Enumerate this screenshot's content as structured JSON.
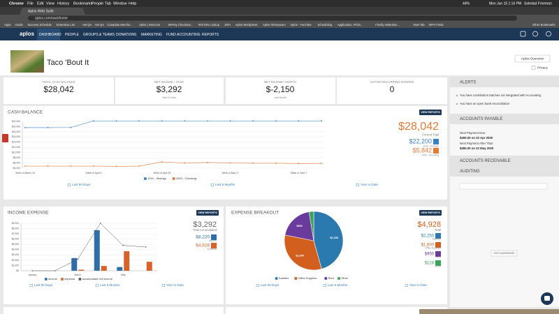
{
  "menu_bar": {
    "items": [
      "Chrome",
      "File",
      "Edit",
      "View",
      "History",
      "Bookmarks",
      "People",
      "Tab",
      "Window",
      "Help"
    ],
    "battery": "44%",
    "clock": "Mon Jun 15  1:16 PM",
    "user": "Soledad Freeman"
  },
  "browser": {
    "tab": "Aplos Web Suite",
    "url": "aplos.com/aws/home",
    "bookmarks": [
      "Apps",
      "Guide",
      "Success Schedule",
      "Extension List",
      "AM QA",
      "AM QA",
      "Canadian Merchs...",
      "Aplos | Intercom",
      "WePay Checkout...",
      "IRS EIN Lookup",
      "JIRA",
      "Aplos Wordpress",
      "Aplos Athenaeum",
      "Aplos - YouTube",
      "Scheduling",
      "Application, Pricin...",
      "Floctly Institution...",
      "New Tab",
      "WFH Finds"
    ],
    "other_bookmarks": "Other Bookmarks"
  },
  "nav": {
    "logo": "aplos",
    "items": [
      "DASHBOARD",
      "PEOPLE",
      "GROUPS & TEAMS",
      "DONATIONS",
      "MARKETING",
      "FUND ACCOUNTING",
      "REPORTS"
    ]
  },
  "org": {
    "name": "Taco 'Bout It",
    "overview_button": "Aplos Overview",
    "privacy": "Privacy"
  },
  "kpis": [
    {
      "label": "TOTAL CASH BALANCE",
      "value": "$28,042"
    },
    {
      "label": "NET INCOME / YEAR",
      "value": "$3,292",
      "note": "Year to Date"
    },
    {
      "label": "NET INCOME / MONTH",
      "value": "$-2,150",
      "note": "Last Month"
    },
    {
      "label": "ACTIVE RECURRING DONORS",
      "value": "0"
    }
  ],
  "cash_balance": {
    "type": "line",
    "title": "CASH BALANCE",
    "button": "VIEW REPORTS",
    "categories": [
      "Week of March 15",
      null,
      null,
      "Week of April 5",
      null,
      null,
      "Week of April 26",
      null,
      null,
      "Week of May 17",
      null,
      null,
      "Week of June 7",
      null
    ],
    "series": [
      {
        "name": "1010 - Savings",
        "color": "#3a7ebf",
        "values": [
          19600,
          19600,
          19650,
          22200,
          22200,
          22200,
          22200,
          22200,
          22200,
          22200,
          22200,
          22200,
          22200,
          22200
        ]
      },
      {
        "name": "1000 - Checking",
        "color": "#e07b39",
        "values": [
          4800,
          4800,
          4800,
          4800,
          4700,
          4800,
          6400,
          6000,
          6200,
          6000,
          5900,
          5900,
          5800,
          5842
        ]
      }
    ],
    "ylim": [
      4000,
      22000
    ],
    "yticks": [
      {
        "value": 4000,
        "label": "$4,000"
      },
      {
        "value": 6000,
        "label": "$6,000"
      },
      {
        "value": 8000,
        "label": "$8,000"
      },
      {
        "value": 10000,
        "label": "$10,000"
      },
      {
        "value": 12000,
        "label": "$12,000"
      },
      {
        "value": 14000,
        "label": "$14,000"
      },
      {
        "value": 16000,
        "label": "$16,000"
      },
      {
        "value": 18000,
        "label": "$18,000"
      },
      {
        "value": 20000,
        "label": "$20,000"
      },
      {
        "value": 22000,
        "label": "$22,000"
      }
    ],
    "grid": true,
    "total": {
      "value": "$28,042",
      "label": "Current Total"
    },
    "summary": [
      {
        "value": "$22,200",
        "label": "1010 - Savings"
      },
      {
        "value": "$5,842",
        "label": "1000 - Checking"
      }
    ],
    "ranges": [
      "Last 90 Days",
      "Last 6 Months",
      "Year to Date"
    ]
  },
  "income_expense": {
    "type": "bar",
    "title": "INCOME EXPENSE",
    "button": "VIEW REPORTS",
    "categories": [
      "January",
      null,
      "March",
      null,
      "May",
      null
    ],
    "series": [
      {
        "name": "income",
        "color": "#2f6fa8",
        "values": [
          0,
          0,
          2400,
          7700,
          700,
          0
        ]
      },
      {
        "name": "expense",
        "color": "#d9622b",
        "values": [
          0,
          0,
          200,
          900,
          3700,
          1700
        ]
      },
      {
        "name": "accumulated net income",
        "color": "#555555",
        "type": "line",
        "values": [
          0,
          0,
          2200,
          9000,
          4800,
          4500
        ]
      }
    ],
    "ylim": [
      0,
      9000
    ],
    "yticks": [
      {
        "value": 0,
        "label": "$0"
      },
      {
        "value": 1000,
        "label": "$1,000"
      },
      {
        "value": 2000,
        "label": "$2,000"
      },
      {
        "value": 3000,
        "label": "$3,000"
      },
      {
        "value": 4000,
        "label": "$4,000"
      },
      {
        "value": 5000,
        "label": "$5,000"
      },
      {
        "value": 6000,
        "label": "$6,000"
      },
      {
        "value": 7000,
        "label": "$7,000"
      },
      {
        "value": 8000,
        "label": "$8,000"
      },
      {
        "value": 9000,
        "label": "$9,000"
      }
    ],
    "grid": true,
    "total": {
      "value": "$3,292",
      "label": "Total Accumulated"
    },
    "summary": [
      {
        "value": "$8,220",
        "label": "Income"
      },
      {
        "value": "$4,928",
        "label": "Expense"
      }
    ],
    "ranges": [
      "Last 90 Days",
      "Last 6 Months",
      "Year to Date"
    ]
  },
  "expense_breakout": {
    "type": "pie",
    "title": "EXPENSE BREAKOUT",
    "button": "VIEW REPORTS",
    "categories": [
      "Salaries",
      "Office Supplies",
      "Rent",
      "Other"
    ],
    "values": [
      2250,
      1600,
      950,
      128
    ],
    "value_labels": [
      "$2,250",
      "$1,600",
      "$950",
      null
    ],
    "colors": [
      "#2a7ab0",
      "#d35f1f",
      "#6a3a9c",
      "#3aa35a"
    ],
    "total": {
      "value": "$4,928",
      "label": "Total"
    },
    "summary": [
      {
        "value": "$2,250",
        "label": "Salaries"
      },
      {
        "value": "$1,600",
        "label": "Office Supplies"
      },
      {
        "value": "$950",
        "label": "Rent"
      },
      {
        "value": "$128",
        "label": "Other"
      }
    ],
    "ranges": [
      "Last 90 Days",
      "Last 6 Months",
      "Year to Date"
    ]
  },
  "sidebar": {
    "alerts": {
      "title": "ALERTS",
      "items": [
        "You have contribution batches not integrated with Accounting.",
        "You have an open bank reconciliation"
      ]
    },
    "payable": {
      "title": "ACCOUNTS PAYABLE",
      "due_label": "Next Payment Due:",
      "due": "$450.00 on 22 Apr 2020",
      "after_label": "Next Payment After That:",
      "after": "$450.00 on 22 May 2020"
    },
    "receivable": {
      "title": "ACCOUNTS RECEIVABLE"
    },
    "auditing": {
      "title": "AUDITING"
    },
    "edit_button": "EDIT DASHBOARD"
  }
}
